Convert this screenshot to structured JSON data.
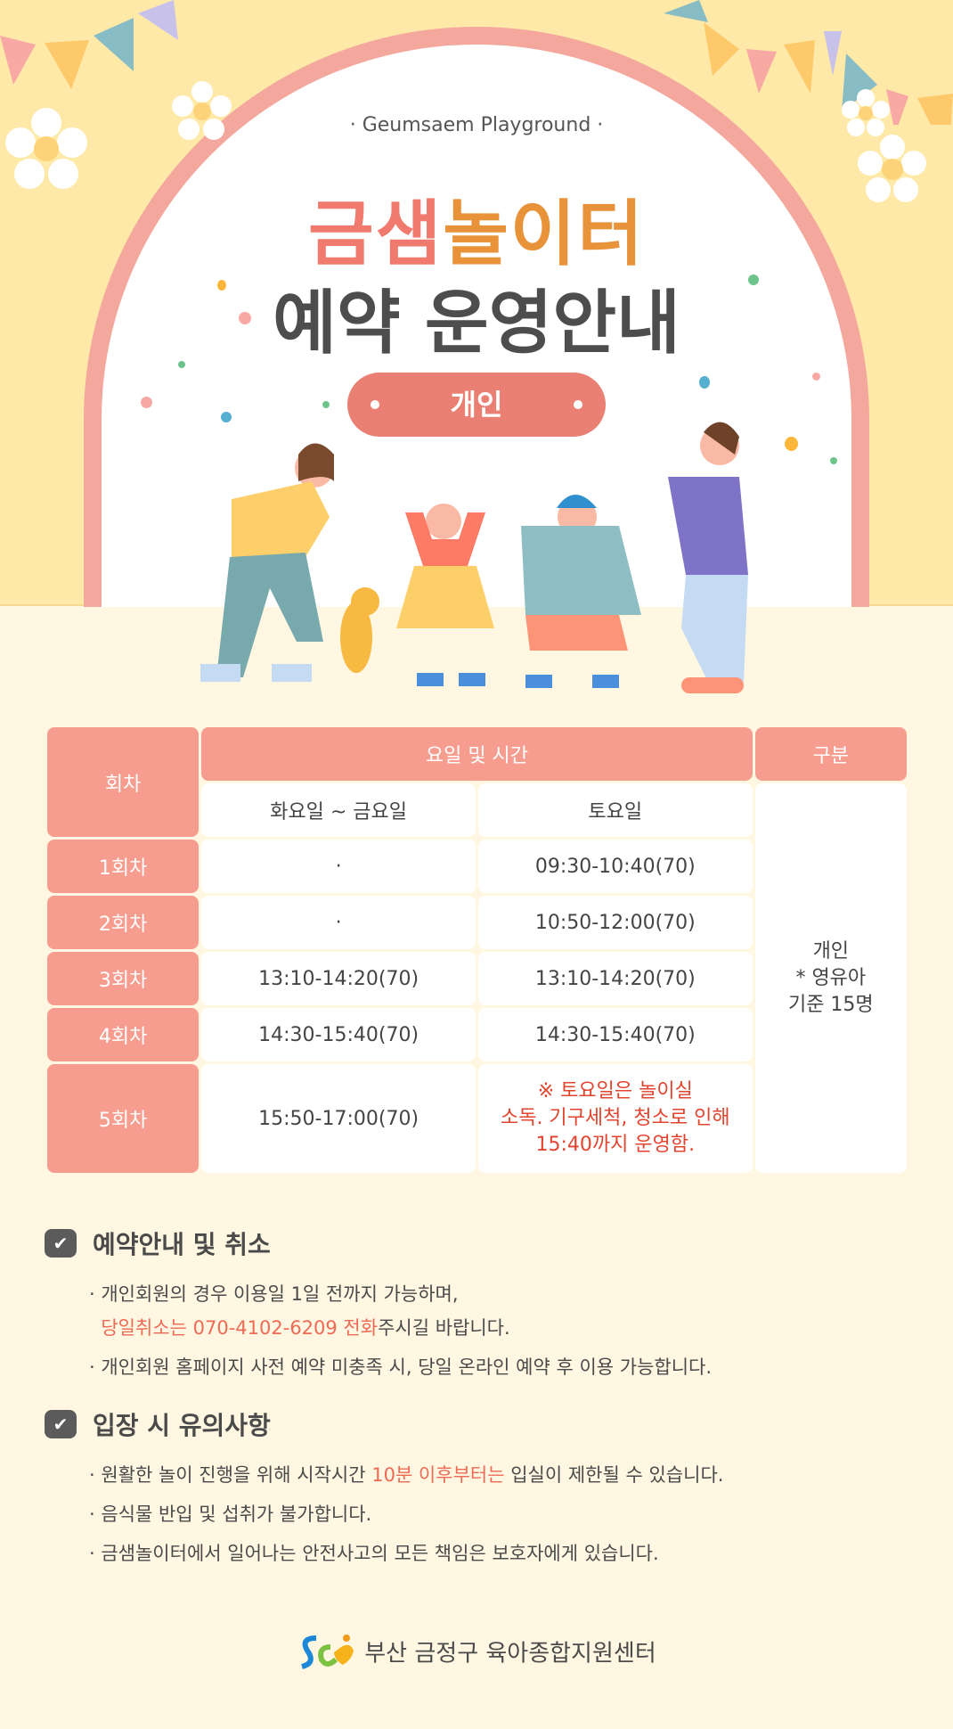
{
  "hero": {
    "subtitle": "· Geumsaem Playground ·",
    "title_a": "금샘",
    "title_b": "놀이터",
    "title_line2": "예약 운영안내",
    "badge": "개인"
  },
  "colors": {
    "accent": "#f79d90",
    "pill": "#ea8074",
    "highlight": "#ef6a55",
    "bg": "#fff7e1",
    "hero_bg": "#fee9a9"
  },
  "table": {
    "col_session": "회차",
    "col_time": "요일 및 시간",
    "col_type": "구분",
    "sub_weekday": "화요일 ~ 금요일",
    "sub_saturday": "토요일",
    "type_lines": [
      "개인",
      "* 영유아",
      "기준 15명"
    ],
    "rows": [
      {
        "session": "1회차",
        "weekday": "·",
        "saturday": "09:30-10:40(70)"
      },
      {
        "session": "2회차",
        "weekday": "·",
        "saturday": "10:50-12:00(70)"
      },
      {
        "session": "3회차",
        "weekday": "13:10-14:20(70)",
        "saturday": "13:10-14:20(70)"
      },
      {
        "session": "4회차",
        "weekday": "14:30-15:40(70)",
        "saturday": "14:30-15:40(70)"
      },
      {
        "session": "5회차",
        "weekday": "15:50-17:00(70)",
        "saturday_note": [
          "※ 토요일은 놀이실",
          "소독. 기구세척, 청소로 인해",
          "15:40까지 운영함."
        ]
      }
    ]
  },
  "notice1": {
    "title": "예약안내 및 취소",
    "icon": "checkbox-icon",
    "item1_a": "· 개인회원의 경우 이용일 1일 전까지 가능하며,",
    "item1_hl": "당일취소는 070-4102-6209 전화",
    "item1_b": "주시길 바랍니다.",
    "item2": "· 개인회원 홈페이지 사전 예약 미충족 시, 당일 온라인 예약 후 이용 가능합니다."
  },
  "notice2": {
    "title": "입장 시 유의사항",
    "icon": "checkbox-icon",
    "item1_a": "· 원활한 놀이 진행을 위해 시작시간 ",
    "item1_hl": "10분 이후부터는",
    "item1_b": " 입실이 제한될 수 있습니다.",
    "item2": "· 음식물 반입 및 섭취가 불가합니다.",
    "item3": "· 금샘놀이터에서 일어나는 안전사고의 모든 책임은 보호자에게 있습니다."
  },
  "footer": {
    "org": "부산 금정구 육아종합지원센터"
  }
}
